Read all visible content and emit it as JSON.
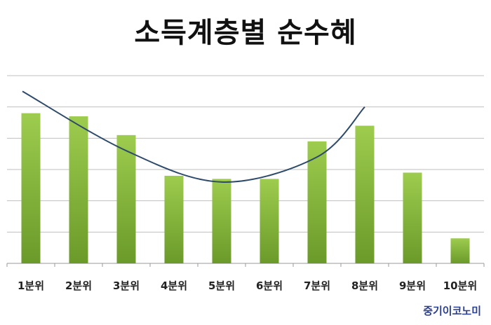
{
  "chart_data": {
    "type": "bar",
    "title": "소득계층별 순수혜",
    "categories": [
      "1분위",
      "2분위",
      "3분위",
      "4분위",
      "5분위",
      "6분위",
      "7분위",
      "8분위",
      "9분위",
      "10분위"
    ],
    "values": [
      4.8,
      4.7,
      4.1,
      2.8,
      2.7,
      2.7,
      3.9,
      4.4,
      2.9,
      0.8
    ],
    "trendline": {
      "type": "polynomial",
      "x_range": [
        "1분위",
        "8분위"
      ],
      "points": [
        {
          "x": "1분위",
          "y": 5.5
        },
        {
          "x": "3분위",
          "y": 3.6
        },
        {
          "x": "5분위",
          "y": 2.6
        },
        {
          "x": "7분위",
          "y": 3.4
        },
        {
          "x": "8분위",
          "y": 5.0
        }
      ]
    },
    "ylim": [
      0,
      6
    ],
    "grid": true,
    "xlabel": "",
    "ylabel": "",
    "colors": {
      "bar_top": "#9dcc4e",
      "bar_bottom": "#6b9a2a",
      "trend": "#2e4a6b",
      "grid": "#bfbfbf"
    }
  },
  "footer": {
    "source": "중기이코노미"
  }
}
